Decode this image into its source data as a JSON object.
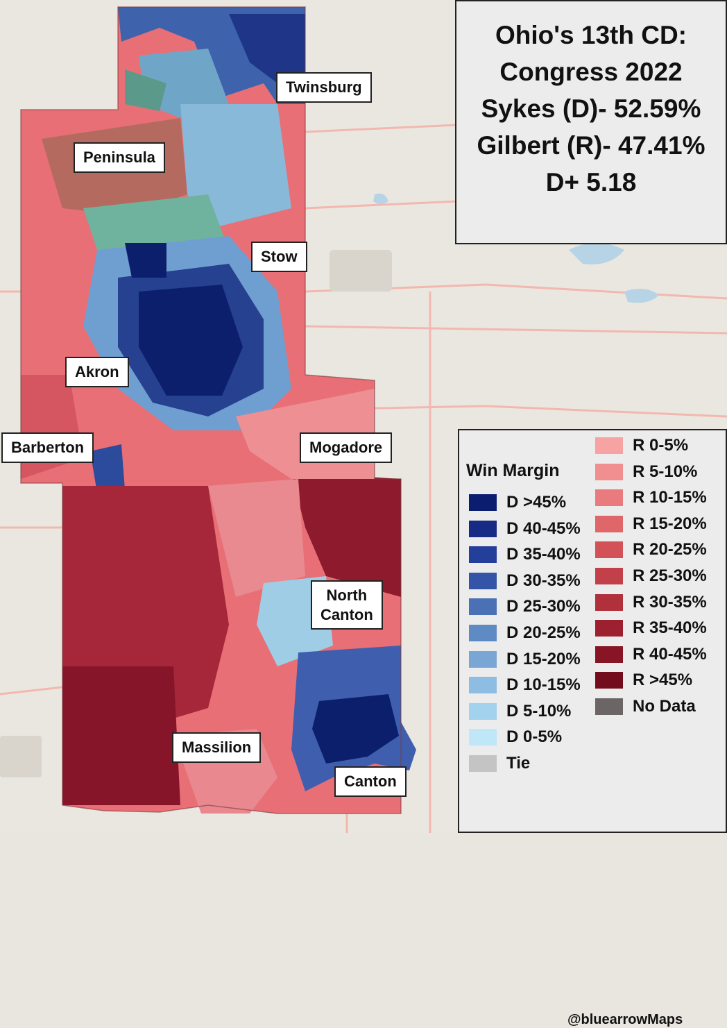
{
  "title_lines": [
    "Ohio's 13th CD:",
    "Congress 2022",
    "Sykes (D)- 52.59%",
    "Gilbert (R)- 47.41%",
    "D+ 5.18"
  ],
  "cities": {
    "twinsburg": "Twinsburg",
    "peninsula": "Peninsula",
    "stow": "Stow",
    "akron": "Akron",
    "barberton": "Barberton",
    "mogadore": "Mogadore",
    "north_canton": [
      "North",
      "Canton"
    ],
    "massilion": "Massilion",
    "canton": "Canton"
  },
  "legend": {
    "title": "Win Margin",
    "democrat": [
      {
        "label": "D >45%",
        "color": "#0a1d6e"
      },
      {
        "label": "D 40-45%",
        "color": "#152b85"
      },
      {
        "label": "D 35-40%",
        "color": "#243f9a"
      },
      {
        "label": "D 30-35%",
        "color": "#3455a7"
      },
      {
        "label": "D 25-30%",
        "color": "#4a70b5"
      },
      {
        "label": "D 20-25%",
        "color": "#5f8bc5"
      },
      {
        "label": "D 15-20%",
        "color": "#79a6d4"
      },
      {
        "label": "D 10-15%",
        "color": "#8dbde2"
      },
      {
        "label": "D 5-10%",
        "color": "#a3d2ee"
      },
      {
        "label": "D 0-5%",
        "color": "#bfe7f7"
      },
      {
        "label": "Tie",
        "color": "#c4c4c4"
      }
    ],
    "republican": [
      {
        "label": "R 0-5%",
        "color": "#f7a3a3"
      },
      {
        "label": "R 5-10%",
        "color": "#f08e90"
      },
      {
        "label": "R 10-15%",
        "color": "#e97a7e"
      },
      {
        "label": "R 15-20%",
        "color": "#df6669"
      },
      {
        "label": "R 20-25%",
        "color": "#d25258"
      },
      {
        "label": "R 25-30%",
        "color": "#c2404a"
      },
      {
        "label": "R 30-35%",
        "color": "#b0303c"
      },
      {
        "label": "R 35-40%",
        "color": "#9c2030"
      },
      {
        "label": "R 40-45%",
        "color": "#881526"
      },
      {
        "label": "R >45%",
        "color": "#730c1c"
      },
      {
        "label": "No Data",
        "color": "#6b6565"
      }
    ]
  },
  "credit": "@bluearrowMaps"
}
